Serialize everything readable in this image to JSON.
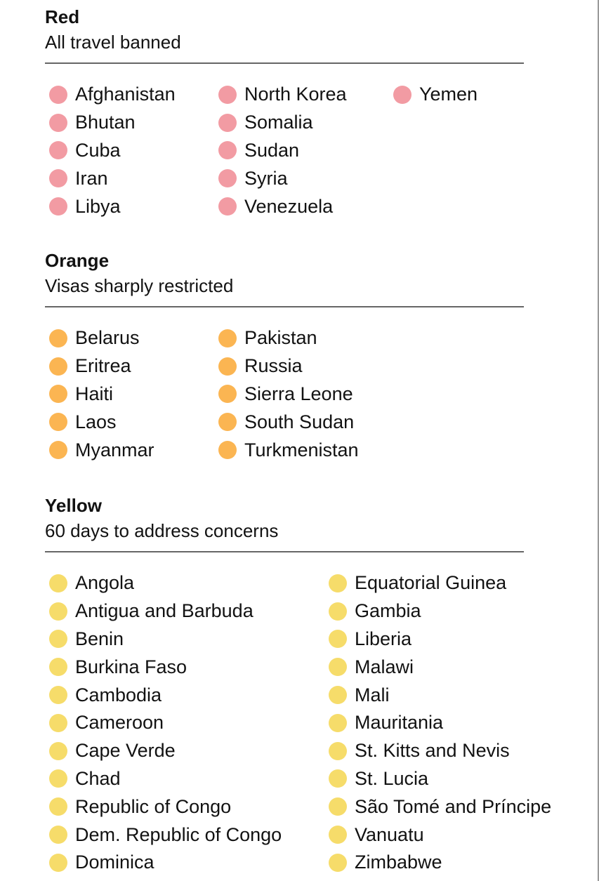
{
  "colors": {
    "red": "#f29ba3",
    "orange": "#fbb552",
    "yellow": "#f6dc6a"
  },
  "sections": [
    {
      "id": "red",
      "title": "Red",
      "subtitle": "All travel banned",
      "columns": [
        [
          "Afghanistan",
          "Bhutan",
          "Cuba",
          "Iran",
          "Libya"
        ],
        [
          "North Korea",
          "Somalia",
          "Sudan",
          "Syria",
          "Venezuela"
        ],
        [
          "Yemen"
        ]
      ]
    },
    {
      "id": "orange",
      "title": "Orange",
      "subtitle": "Visas sharply restricted",
      "columns": [
        [
          "Belarus",
          "Eritrea",
          "Haiti",
          "Laos",
          "Myanmar"
        ],
        [
          "Pakistan",
          "Russia",
          "Sierra Leone",
          "South Sudan",
          "Turkmenistan"
        ]
      ]
    },
    {
      "id": "yellow",
      "title": "Yellow",
      "subtitle": "60 days to address concerns",
      "columns": [
        [
          "Angola",
          "Antigua and Barbuda",
          "Benin",
          "Burkina Faso",
          "Cambodia",
          "Cameroon",
          "Cape Verde",
          "Chad",
          "Republic of Congo",
          "Dem. Republic of Congo",
          "Dominica"
        ],
        [
          "Equatorial Guinea",
          "Gambia",
          "Liberia",
          "Malawi",
          "Mali",
          "Mauritania",
          "St. Kitts and Nevis",
          "St. Lucia",
          "São Tomé and Príncipe",
          "Vanuatu",
          "Zimbabwe"
        ]
      ]
    }
  ]
}
